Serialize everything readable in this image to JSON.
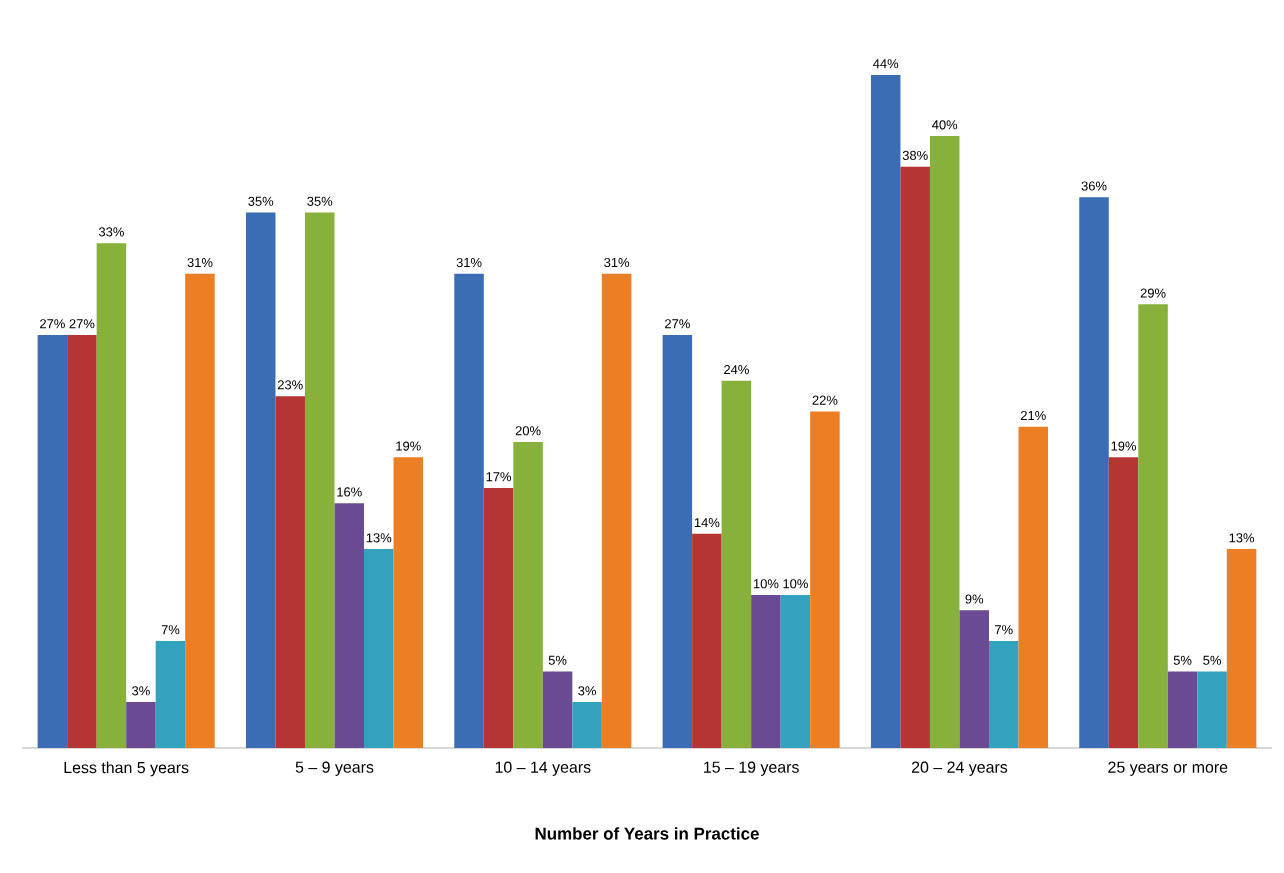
{
  "chart_data": {
    "type": "bar",
    "xlabel": "Number of Years in Practice",
    "categories": [
      "Less than 5 years",
      "5 – 9 years",
      "10 – 14 years",
      "15 – 19 years",
      "20 – 24 years",
      "25 years or more"
    ],
    "series": [
      {
        "color": "#3a6db3",
        "values": [
          27,
          35,
          31,
          27,
          44,
          36
        ],
        "value_labels": [
          "27%",
          "35%",
          "31%",
          "27%",
          "44%",
          "36%"
        ]
      },
      {
        "color": "#b53434",
        "values": [
          27,
          23,
          17,
          14,
          38,
          19
        ],
        "value_labels": [
          "27%",
          "23%",
          "17%",
          "14%",
          "38%",
          "19%"
        ]
      },
      {
        "color": "#88b13c",
        "values": [
          33,
          35,
          20,
          24,
          40,
          29
        ],
        "value_labels": [
          "33%",
          "35%",
          "20%",
          "24%",
          "40%",
          "29%"
        ]
      },
      {
        "color": "#6b4a94",
        "values": [
          3,
          16,
          5,
          10,
          9,
          5
        ],
        "value_labels": [
          "3%",
          "16%",
          "5%",
          "10%",
          "9%",
          "5%"
        ]
      },
      {
        "color": "#33a2bf",
        "values": [
          7,
          13,
          3,
          10,
          7,
          5
        ],
        "value_labels": [
          "7%",
          "13%",
          "3%",
          "10%",
          "7%",
          "5%"
        ]
      },
      {
        "color": "#ec7e24",
        "values": [
          31,
          19,
          31,
          22,
          21,
          13
        ],
        "value_labels": [
          "31%",
          "19%",
          "31%",
          "22%",
          "21%",
          "13%"
        ]
      }
    ]
  }
}
